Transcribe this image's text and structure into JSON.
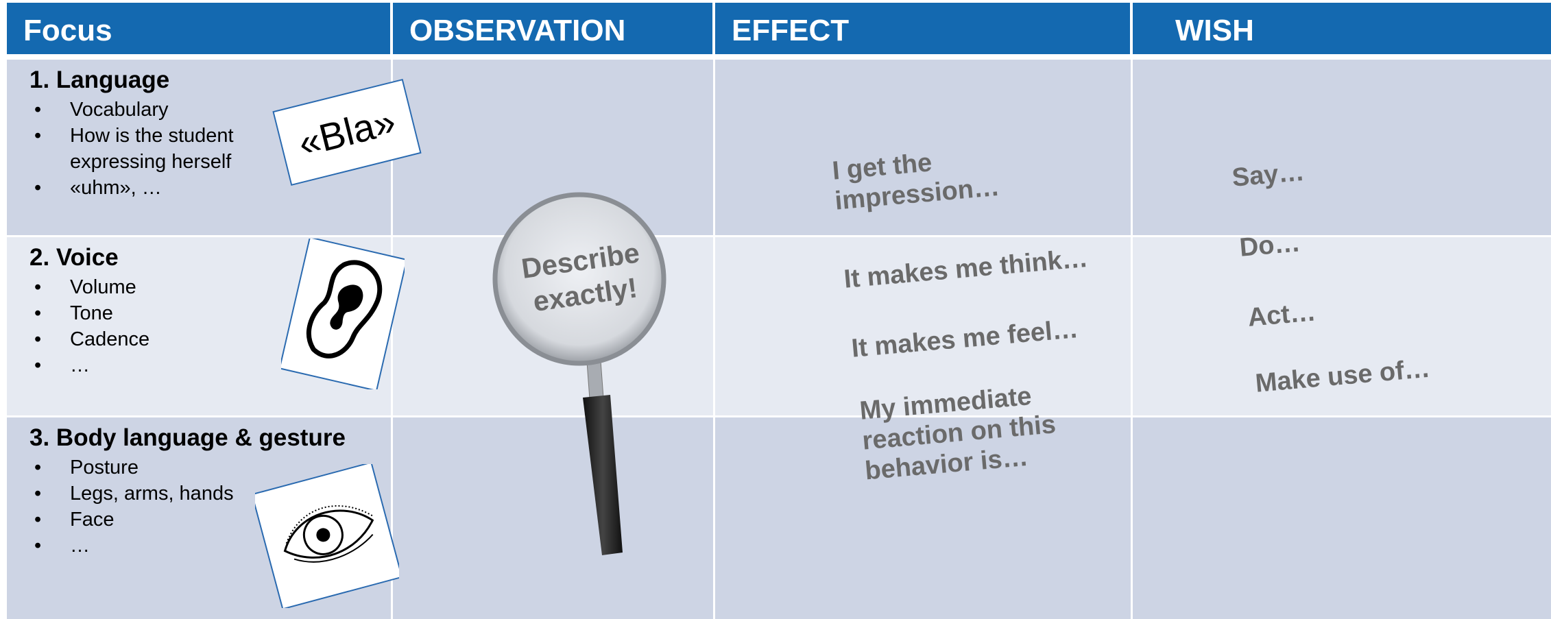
{
  "table": {
    "header": [
      "Focus",
      "OBSERVATION",
      "EFFECT",
      "WISH"
    ],
    "rows": [
      {
        "title": "1. Language",
        "items": [
          "Vocabulary",
          "How is the student expressing herself",
          "«uhm», …"
        ]
      },
      {
        "title": "2. Voice",
        "items": [
          "Volume",
          "Tone",
          "Cadence",
          "…"
        ]
      },
      {
        "title": "3. Body language & gesture",
        "items": [
          "Posture",
          "Legs, arms, hands",
          "Face",
          "…"
        ]
      }
    ]
  },
  "card_text": "«Bla»",
  "magnifier_text": "Describe exactly!",
  "effect_phrases": [
    "I get the impression…",
    "It makes me think…",
    "It makes me feel…",
    "My immediate reaction on this behavior is…"
  ],
  "wish_phrases": [
    "Say…",
    "Do…",
    "Act…",
    "Make use of…"
  ]
}
